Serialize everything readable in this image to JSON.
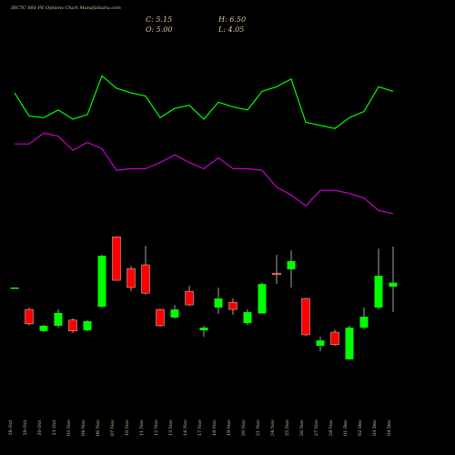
{
  "chart_data": {
    "type": "candlestick",
    "title": "IRCTC 660  PE Options  Chart MunafaSutra.com",
    "annotations": [
      "C: 5.15",
      "H: 6.50",
      "O: 5.00",
      "L: 4.05"
    ],
    "categories": [
      "28 Oct",
      "29 Oct",
      "30 Oct",
      "31 Oct",
      "03 Nov",
      "04 Nov",
      "06 Nov",
      "07 Nov",
      "10 Nov",
      "11 Nov",
      "12 Nov",
      "13 Nov",
      "14 Nov",
      "17 Nov",
      "18 Nov",
      "19 Nov",
      "20 Nov",
      "21 Nov",
      "24 Nov",
      "25 Nov",
      "26 Nov",
      "27 Nov",
      "28 Nov",
      "01 Dec",
      "02 Dec",
      "03 Dec",
      "04 Dec"
    ],
    "open": [
      4.97,
      4.15,
      3.34,
      3.54,
      3.75,
      3.37,
      4.25,
      6.87,
      5.68,
      5.82,
      4.15,
      3.85,
      4.83,
      3.37,
      4.22,
      4.42,
      3.64,
      4.0,
      5.51,
      5.65,
      4.56,
      2.79,
      3.3,
      2.28,
      3.47,
      4.22,
      5.0
    ],
    "high": [
      4.97,
      4.22,
      3.58,
      4.15,
      3.81,
      3.75,
      6.19,
      6.87,
      5.78,
      6.53,
      4.18,
      4.32,
      5.04,
      3.54,
      4.97,
      4.56,
      4.15,
      5.14,
      6.19,
      6.36,
      4.59,
      3.13,
      3.4,
      3.54,
      4.22,
      6.43,
      6.5
    ],
    "low": [
      4.97,
      3.55,
      3.3,
      3.47,
      3.27,
      3.34,
      4.22,
      5.24,
      4.83,
      4.7,
      3.5,
      3.81,
      4.28,
      3.13,
      3.98,
      3.95,
      3.57,
      3.98,
      5.1,
      4.97,
      3.16,
      2.59,
      2.79,
      2.28,
      3.4,
      4.15,
      4.05
    ],
    "close": [
      4.97,
      3.61,
      3.54,
      4.02,
      3.34,
      3.71,
      6.16,
      5.24,
      4.97,
      4.76,
      3.54,
      4.15,
      4.32,
      3.47,
      4.56,
      4.15,
      4.05,
      5.1,
      5.45,
      5.96,
      3.2,
      2.99,
      2.83,
      3.47,
      3.88,
      5.41,
      5.15
    ],
    "up_color": "#00ff00",
    "down_color": "#ff0000",
    "ylim": [
      1.7,
      8.0
    ],
    "indicators": {
      "ylim": [
        0,
        100
      ],
      "series": [
        {
          "color": "#00ff00",
          "values": [
            87,
            72,
            71,
            76,
            70,
            73,
            98,
            90,
            87,
            85,
            71,
            77,
            79,
            70,
            81,
            78,
            76,
            88,
            91,
            96,
            68,
            66,
            64,
            71,
            75,
            91,
            88
          ]
        },
        {
          "color": "#cc00cc",
          "values": [
            54,
            54,
            61,
            59,
            50,
            55,
            51,
            37,
            38,
            38,
            42,
            47,
            42,
            38,
            45,
            38,
            38,
            37,
            26,
            21,
            14,
            24,
            24,
            22,
            19,
            11,
            9
          ]
        }
      ]
    }
  }
}
